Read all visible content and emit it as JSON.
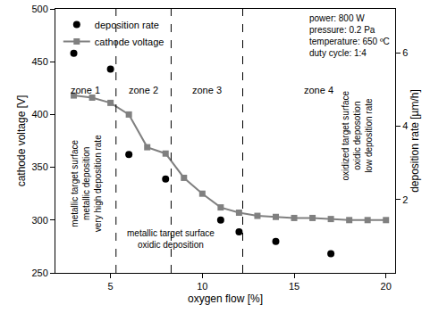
{
  "chart_data": {
    "type": "line",
    "x_title": "oxygen flow [%]",
    "y_title": "cathode voltage [V]",
    "y2_title": "deposition rate [µm/h]",
    "xlim": [
      2,
      20.5
    ],
    "xticks": [
      5,
      10,
      15,
      20
    ],
    "ylim": [
      250,
      500
    ],
    "yticks": [
      250,
      300,
      350,
      400,
      450,
      500
    ],
    "y2lim": [
      0,
      7.2
    ],
    "y2ticks": [
      2,
      4,
      6
    ],
    "grid": false,
    "legend": "upper left",
    "series": [
      {
        "name": "deposition rate",
        "type": "scatter",
        "marker": "circle",
        "color": "#000000",
        "axis": "y2",
        "x": [
          3,
          5,
          6,
          8,
          11,
          12,
          14,
          17
        ],
        "values": [
          5.99,
          5.56,
          3.23,
          2.56,
          1.44,
          1.12,
          0.86,
          0.52
        ]
      },
      {
        "name": "cathode voltage",
        "type": "line",
        "marker": "square",
        "line_style": "solid",
        "color": "#808080",
        "x": [
          3,
          4,
          5,
          6,
          7,
          8,
          9,
          10,
          11,
          12,
          13,
          14,
          15,
          16,
          17,
          18,
          19,
          20
        ],
        "values": [
          418,
          416,
          411,
          400,
          369,
          363,
          340,
          325,
          312,
          307,
          304,
          303,
          302,
          302,
          301,
          300,
          300,
          300
        ]
      }
    ],
    "zone_boundaries": [
      5.3,
      8.3,
      12.2
    ],
    "zone_labels": [
      "zone 1",
      "zone 2",
      "zone 3",
      "zone 4"
    ],
    "annotations": {
      "zone1": [
        "metallic target surface",
        "metallic deposition",
        "very high deposition rate"
      ],
      "zone23": [
        "metallic target surface",
        "oxidic deposition"
      ],
      "zone4": [
        "oxidized target surface",
        "oxidic deposotion",
        "low deposition rate"
      ],
      "conditions": [
        "power: 800 W",
        "pressure: 0.2 Pa",
        "temperature: 650 ºC",
        "duty cycle: 1:4"
      ]
    }
  }
}
